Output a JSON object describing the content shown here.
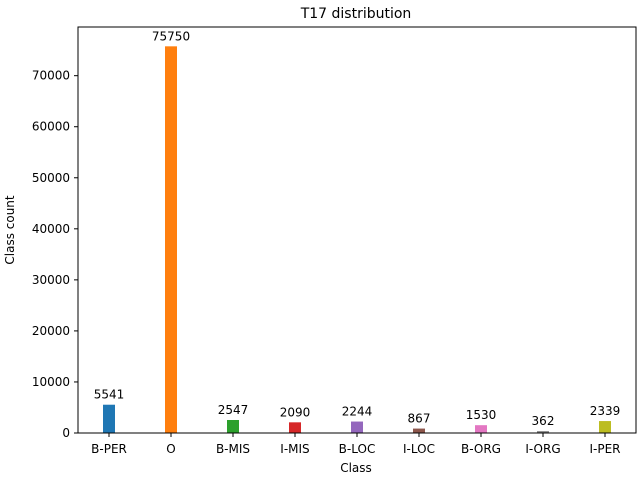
{
  "chart_data": {
    "type": "bar",
    "title": "T17 distribution",
    "xlabel": "Class",
    "ylabel": "Class count",
    "categories": [
      "B-PER",
      "O",
      "B-MIS",
      "I-MIS",
      "B-LOC",
      "I-LOC",
      "B-ORG",
      "I-ORG",
      "I-PER"
    ],
    "values": [
      5541,
      75750,
      2547,
      2090,
      2244,
      867,
      1530,
      362,
      2339
    ],
    "data_labels": [
      "5541",
      "75750",
      "2547",
      "2090",
      "2244",
      "867",
      "1530",
      "362",
      "2339"
    ],
    "colors": [
      "#1f77b4",
      "#ff7f0e",
      "#2ca02c",
      "#d62728",
      "#9467bd",
      "#8c564b",
      "#e377c2",
      "#7f7f7f",
      "#bcbd22"
    ],
    "ylim": [
      0,
      79537
    ],
    "yticks": [
      0,
      10000,
      20000,
      30000,
      40000,
      50000,
      60000,
      70000
    ],
    "ytick_labels": [
      "0",
      "10000",
      "20000",
      "30000",
      "40000",
      "50000",
      "60000",
      "70000"
    ],
    "grid": false,
    "legend": "none"
  }
}
